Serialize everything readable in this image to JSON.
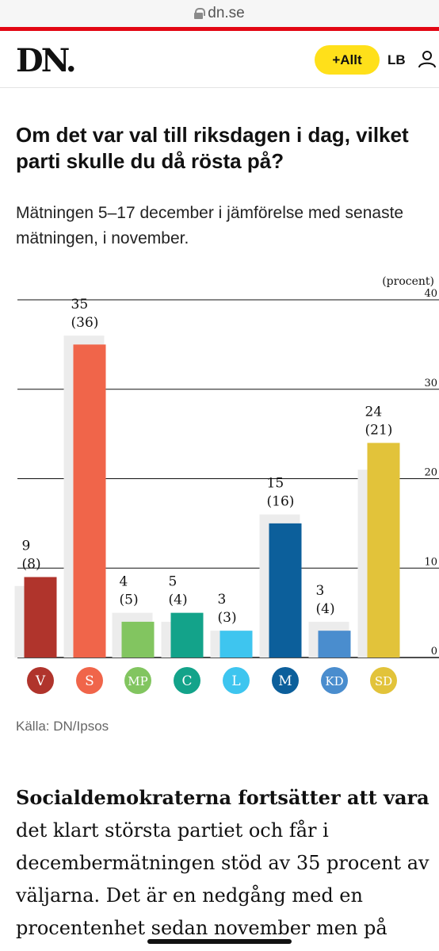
{
  "browser": {
    "url": "dn.se"
  },
  "header": {
    "logo": "DN.",
    "allt_label": "+Allt",
    "initials": "LB"
  },
  "article": {
    "title": "Om det var val till riksdagen i dag, vilket parti skulle du då rösta på?",
    "subtitle": "Mätningen 5–17 december i jämförelse med senaste mätningen, i november.",
    "source": "Källa: DN/Ipsos",
    "body_lead": "Socialdemokraterna fortsätter att vara",
    "body_rest": "det klart största partiet och får i decembermätningen stöd av 35 procent av väljarna. Det är en nedgång med en procentenhet sedan november men på"
  },
  "chart_data": {
    "type": "bar",
    "unit_label": "(procent)",
    "ylim": [
      0,
      40
    ],
    "yticks": [
      0,
      10,
      20,
      30,
      40
    ],
    "ytick_labels": [
      "0",
      "10",
      "20",
      "30",
      "40"
    ],
    "grid": true,
    "categories": [
      "V",
      "S",
      "MP",
      "C",
      "L",
      "M",
      "KD",
      "SD"
    ],
    "series": [
      {
        "values": [
          9,
          35,
          4,
          5,
          3,
          15,
          3,
          24
        ]
      },
      {
        "values": [
          8,
          36,
          5,
          4,
          3,
          16,
          4,
          21
        ]
      }
    ],
    "value_labels": [
      "9",
      "35",
      "4",
      "5",
      "3",
      "15",
      "3",
      "24"
    ],
    "previous_labels": [
      "(8)",
      "(36)",
      "(5)",
      "(4)",
      "(3)",
      "(16)",
      "(4)",
      "(21)"
    ],
    "colors": [
      "#b0342c",
      "#f0654a",
      "#82c560",
      "#13a38a",
      "#3ec5ef",
      "#0c5f9b",
      "#4a8dce",
      "#e2c33a"
    ],
    "previous_color": "#ececec"
  }
}
